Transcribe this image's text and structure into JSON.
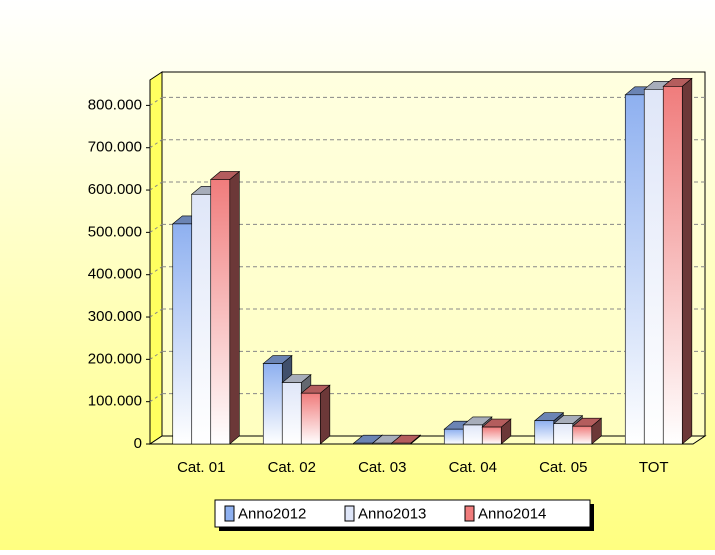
{
  "chart_data": {
    "type": "bar3d",
    "categories": [
      "Cat. 01",
      "Cat. 02",
      "Cat. 03",
      "Cat. 04",
      "Cat. 05",
      "TOT"
    ],
    "series": [
      {
        "name": "Anno2012",
        "color": "#8eb0f0",
        "values": [
          520000,
          190000,
          2000,
          35000,
          55000,
          825000
        ]
      },
      {
        "name": "Anno2013",
        "color": "#dfe6f8",
        "values": [
          590000,
          145000,
          2000,
          45000,
          48000,
          838000
        ]
      },
      {
        "name": "Anno2014",
        "color": "#f07c7c",
        "values": [
          625000,
          120000,
          2000,
          40000,
          42000,
          845000
        ]
      }
    ],
    "ylim": [
      0,
      860000
    ],
    "yticks": [
      0,
      {
        "value": 100000,
        "label": "100.000"
      },
      {
        "value": 200000,
        "label": "200.000"
      },
      {
        "value": 300000,
        "label": "300.000"
      },
      {
        "value": 400000,
        "label": "400.000"
      },
      {
        "value": 500000,
        "label": "500.000"
      },
      {
        "value": 600000,
        "label": "600.000"
      },
      {
        "value": 700000,
        "label": "700.000"
      },
      {
        "value": 800000,
        "label": "800.000"
      }
    ],
    "grid": true,
    "legend": "bottom"
  }
}
